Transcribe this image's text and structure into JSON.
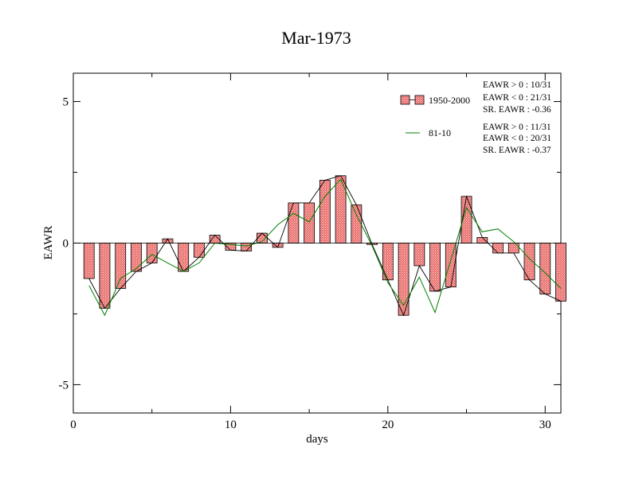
{
  "chart_data": {
    "type": "bar",
    "title": "Mar-1973",
    "xlabel": "days",
    "ylabel": "EAWR",
    "xlim": [
      0,
      31
    ],
    "ylim": [
      -6,
      6
    ],
    "xticks": [
      0,
      10,
      20,
      30
    ],
    "yticks": [
      -5,
      0,
      5
    ],
    "grid": false,
    "legend_position": "top-right",
    "x": [
      1,
      2,
      3,
      4,
      5,
      6,
      7,
      8,
      9,
      10,
      11,
      12,
      13,
      14,
      15,
      16,
      17,
      18,
      19,
      20,
      21,
      22,
      23,
      24,
      25,
      26,
      27,
      28,
      29,
      30,
      31
    ],
    "series": [
      {
        "name": "1950-2000",
        "kind": "bar",
        "color": "#e06060",
        "values": [
          -1.25,
          -2.3,
          -1.6,
          -1.0,
          -0.7,
          0.15,
          -1.0,
          -0.5,
          0.28,
          -0.25,
          -0.28,
          0.35,
          -0.15,
          1.42,
          1.42,
          2.22,
          2.38,
          1.35,
          -0.05,
          -1.3,
          -2.55,
          -0.8,
          -1.7,
          -1.55,
          1.65,
          0.2,
          -0.35,
          -0.35,
          -1.3,
          -1.8,
          -2.05
        ]
      },
      {
        "name": "81-10",
        "kind": "line",
        "color": "#008000",
        "values": [
          -1.5,
          -2.55,
          -1.25,
          -0.9,
          -0.4,
          -0.7,
          -1.0,
          -0.7,
          0.0,
          -0.05,
          -0.1,
          0.05,
          0.65,
          1.05,
          0.75,
          1.65,
          2.25,
          1.0,
          -0.1,
          -1.4,
          -2.2,
          -1.2,
          -2.45,
          -0.6,
          1.25,
          0.4,
          0.5,
          0.05,
          -0.55,
          -1.05,
          -1.6
        ]
      }
    ],
    "stats": [
      [
        "EAWR > 0 : 10/31",
        "EAWR < 0 : 21/31",
        "SR. EAWR : -0.36"
      ],
      [
        "EAWR > 0 : 11/31",
        "EAWR < 0 : 20/31",
        "SR. EAWR : -0.37"
      ]
    ]
  }
}
